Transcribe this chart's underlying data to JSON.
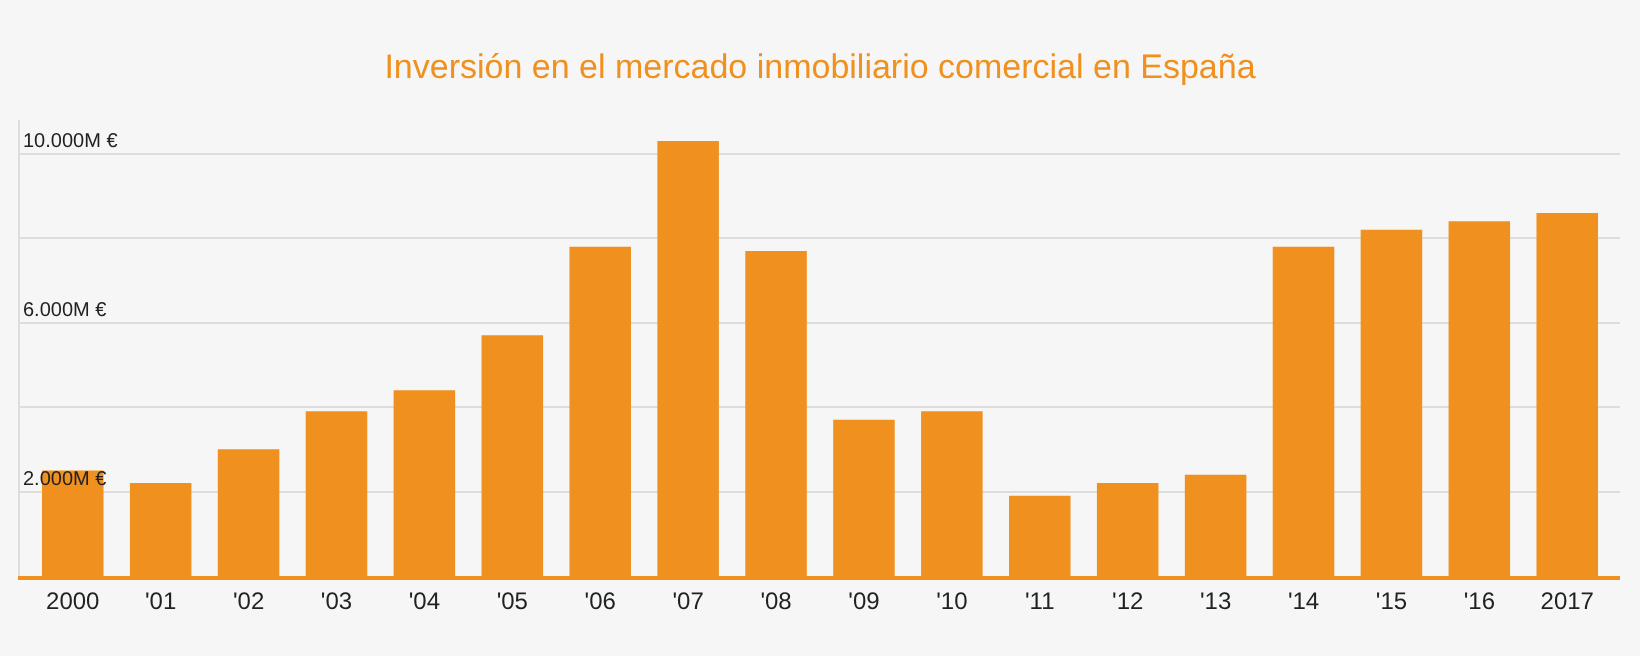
{
  "chart_data": {
    "type": "bar",
    "title": "Inversión en el mercado inmobiliario comercial en España",
    "categories": [
      "2000",
      "'01",
      "'02",
      "'03",
      "'04",
      "'05",
      "'06",
      "'07",
      "'08",
      "'09",
      "'10",
      "'11",
      "'12",
      "'13",
      "'14",
      "'15",
      "'16",
      "2017"
    ],
    "values": [
      2.5,
      2.2,
      3.0,
      3.9,
      4.4,
      5.7,
      7.8,
      10.3,
      7.7,
      3.7,
      3.9,
      1.9,
      2.2,
      2.4,
      7.8,
      8.2,
      8.4,
      8.6
    ],
    "color": "#f0901e",
    "ylim": [
      0,
      10.8
    ],
    "yticks": [
      {
        "value": 2,
        "label": "2.000M €"
      },
      {
        "value": 4,
        "label": null
      },
      {
        "value": 6,
        "label": "6.000M €"
      },
      {
        "value": 8,
        "label": null
      },
      {
        "value": 10,
        "label": "10.000M €"
      }
    ],
    "grid": "y"
  }
}
